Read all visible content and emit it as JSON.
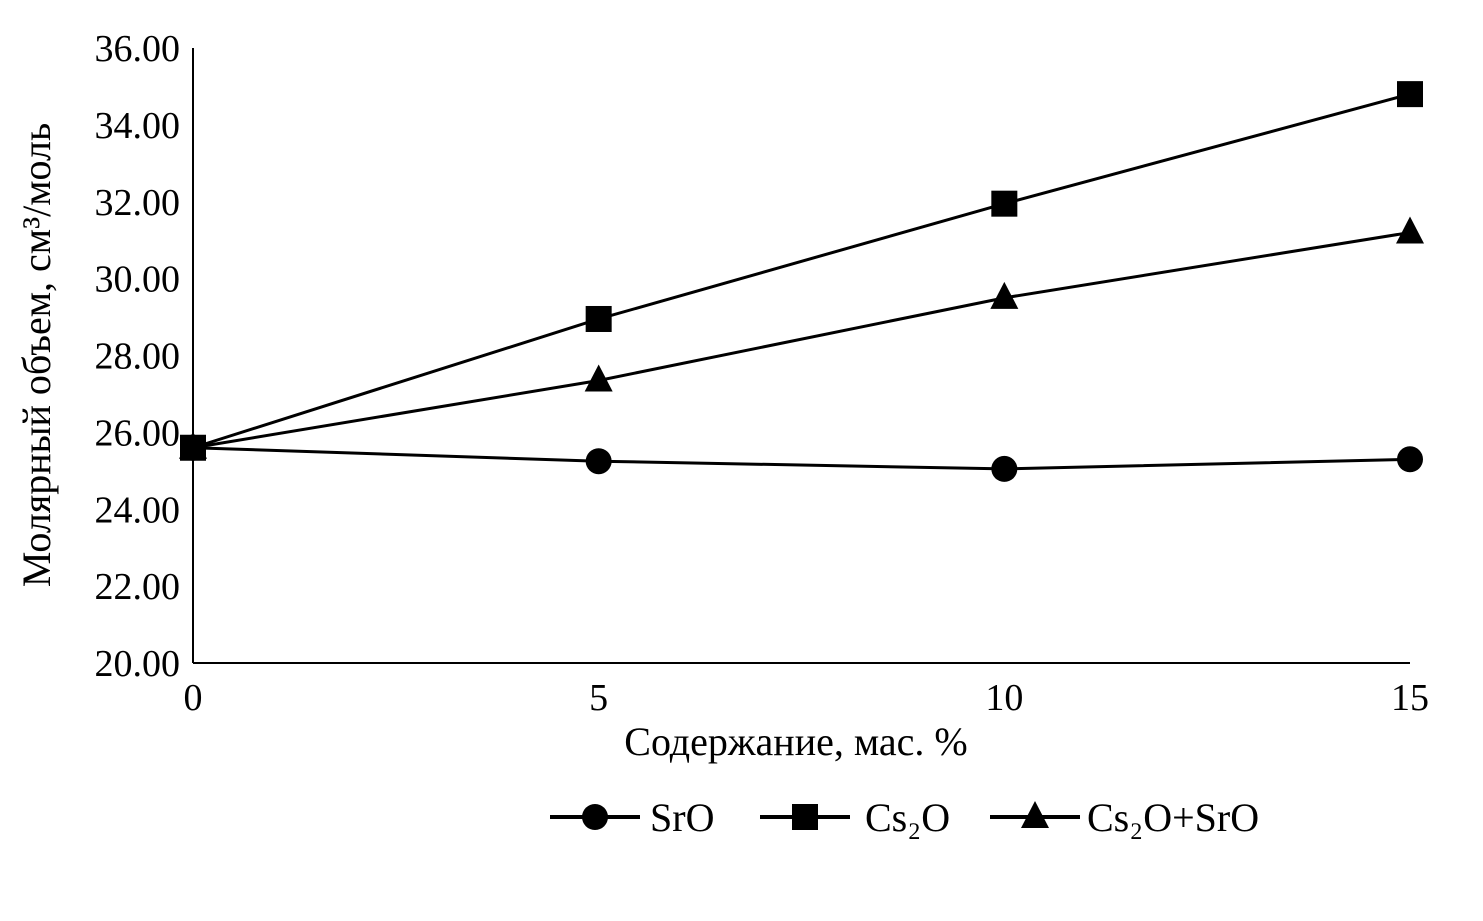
{
  "chart_data": {
    "type": "line",
    "x": [
      0,
      5,
      10,
      15
    ],
    "x_tick_labels": [
      "0",
      "5",
      "10",
      "15"
    ],
    "xlim": [
      0,
      15
    ],
    "ylim": [
      20,
      36
    ],
    "y_tick_values": [
      20,
      22,
      24,
      26,
      28,
      30,
      32,
      34,
      36
    ],
    "y_tick_labels": [
      "20.00",
      "22.00",
      "24.00",
      "26.00",
      "28.00",
      "30.00",
      "32.00",
      "34.00",
      "36.00"
    ],
    "xlabel": "Содержание, мас. %",
    "ylabel": "Молярный объем, см³/моль",
    "grid": false,
    "legend_position": "bottom",
    "series": [
      {
        "name": "SrO",
        "marker": "circle",
        "values": [
          25.6,
          25.25,
          25.05,
          25.3
        ]
      },
      {
        "name": "Cs₂O",
        "marker": "square",
        "values": [
          25.6,
          28.95,
          31.95,
          34.8
        ]
      },
      {
        "name": "Cs₂O+SrO",
        "marker": "triangle",
        "values": [
          25.6,
          27.35,
          29.5,
          31.2
        ]
      }
    ],
    "colors": {
      "line": "#000000",
      "marker": "#000000"
    }
  }
}
